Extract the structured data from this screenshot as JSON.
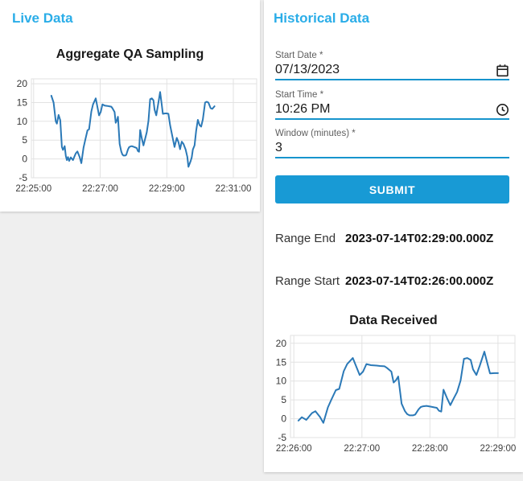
{
  "colors": {
    "header_blue": "#2aade8",
    "accent_blue": "#1794cd",
    "button_blue": "#189ad5",
    "line_blue": "#2b79b7",
    "grid": "#e2e2e2",
    "tick": "#3d3d3d",
    "page_bg": "#efefef",
    "card_bg": "#ffffff"
  },
  "live_panel": {
    "header": "Live Data"
  },
  "historical_panel": {
    "header": "Historical Data",
    "fields": [
      {
        "label": "Start Date *",
        "value": "07/13/2023",
        "icon": "calendar-icon"
      },
      {
        "label": "Start Time *",
        "value": "10:26 PM",
        "icon": "clock-icon"
      },
      {
        "label": "Window (minutes) *",
        "value": "3",
        "icon": ""
      }
    ],
    "submit_label": "SUBMIT",
    "results": [
      {
        "label": "Range End",
        "value": "2023-07-14T02:29:00.000Z"
      },
      {
        "label": "Range Start",
        "value": "2023-07-14T02:26:00.000Z"
      }
    ]
  },
  "chart_data": [
    {
      "type": "line",
      "title": "Aggregate QA Sampling",
      "xlabel": "",
      "ylabel": "",
      "grid": true,
      "legend": "none",
      "line_color": "#2b79b7",
      "y_ticks": [
        -5,
        0,
        5,
        10,
        15,
        20
      ],
      "ylim": [
        -5,
        21.3
      ],
      "x_ticks": [
        "22:25:00",
        "22:27:00",
        "22:29:00",
        "22:31:00"
      ],
      "x_tick_seconds": [
        0,
        120,
        240,
        360
      ],
      "xlim": [
        -4,
        402
      ],
      "points": [
        [
          32,
          16.8
        ],
        [
          36,
          15.0
        ],
        [
          40,
          10.0
        ],
        [
          42,
          9.4
        ],
        [
          45,
          11.7
        ],
        [
          48,
          10.3
        ],
        [
          51,
          3.2
        ],
        [
          53,
          2.4
        ],
        [
          56,
          3.4
        ],
        [
          58,
          0.8
        ],
        [
          60,
          -0.3
        ],
        [
          62,
          0.5
        ],
        [
          64,
          -0.5
        ],
        [
          67,
          0.4
        ],
        [
          71,
          -0.3
        ],
        [
          74,
          0.8
        ],
        [
          76,
          1.5
        ],
        [
          79,
          2.0
        ],
        [
          83,
          0.5
        ],
        [
          86,
          -1.1
        ],
        [
          90,
          3.0
        ],
        [
          93,
          5.0
        ],
        [
          97,
          7.6
        ],
        [
          100,
          7.9
        ],
        [
          104,
          12.6
        ],
        [
          107,
          14.5
        ],
        [
          112,
          16.1
        ],
        [
          118,
          11.6
        ],
        [
          121,
          12.5
        ],
        [
          124,
          14.5
        ],
        [
          128,
          14.2
        ],
        [
          133,
          14.1
        ],
        [
          136,
          14.0
        ],
        [
          140,
          13.9
        ],
        [
          142,
          13.5
        ],
        [
          146,
          12.5
        ],
        [
          148,
          9.6
        ],
        [
          150,
          10.2
        ],
        [
          152,
          11.2
        ],
        [
          155,
          4.0
        ],
        [
          158,
          2.0
        ],
        [
          160,
          1.2
        ],
        [
          162,
          0.9
        ],
        [
          165,
          0.9
        ],
        [
          167,
          1.1
        ],
        [
          170,
          2.5
        ],
        [
          172,
          3.1
        ],
        [
          174,
          3.3
        ],
        [
          177,
          3.4
        ],
        [
          179,
          3.3
        ],
        [
          181,
          3.2
        ],
        [
          184,
          3.0
        ],
        [
          186,
          2.9
        ],
        [
          188,
          2.1
        ],
        [
          190,
          1.9
        ],
        [
          192,
          7.7
        ],
        [
          195,
          5.5
        ],
        [
          198,
          3.6
        ],
        [
          201,
          5.4
        ],
        [
          204,
          7.1
        ],
        [
          207,
          10.1
        ],
        [
          210,
          15.9
        ],
        [
          213,
          16.1
        ],
        [
          216,
          15.6
        ],
        [
          218,
          13.1
        ],
        [
          221,
          11.6
        ],
        [
          224,
          14.1
        ],
        [
          228,
          17.8
        ],
        [
          231,
          14.3
        ],
        [
          233,
          12.0
        ],
        [
          237,
          12.1
        ],
        [
          240,
          12.1
        ],
        [
          243,
          12.0
        ],
        [
          246,
          9.0
        ],
        [
          248,
          7.5
        ],
        [
          254,
          3.2
        ],
        [
          258,
          5.6
        ],
        [
          261,
          4.5
        ],
        [
          264,
          2.6
        ],
        [
          267,
          4.6
        ],
        [
          270,
          4.0
        ],
        [
          274,
          2.5
        ],
        [
          277,
          0.6
        ],
        [
          279,
          -2.1
        ],
        [
          283,
          -0.6
        ],
        [
          285,
          0.4
        ],
        [
          287,
          2.5
        ],
        [
          290,
          3.6
        ],
        [
          293,
          7.5
        ],
        [
          296,
          10.4
        ],
        [
          299,
          9.0
        ],
        [
          302,
          8.6
        ],
        [
          305,
          10.5
        ],
        [
          309,
          15.0
        ],
        [
          312,
          15.2
        ],
        [
          315,
          15.0
        ],
        [
          319,
          13.5
        ],
        [
          322,
          13.3
        ],
        [
          326,
          14.0
        ]
      ]
    },
    {
      "type": "line",
      "title": "Data Received",
      "xlabel": "",
      "ylabel": "",
      "grid": true,
      "legend": "none",
      "line_color": "#2b79b7",
      "y_ticks": [
        -5,
        0,
        5,
        10,
        15,
        20
      ],
      "ylim": [
        -5,
        22.1
      ],
      "x_ticks": [
        "22:26:00",
        "22:27:00",
        "22:28:00",
        "22:29:00"
      ],
      "x_tick_seconds": [
        0,
        60,
        120,
        180
      ],
      "xlim": [
        -3,
        195
      ],
      "points": [
        [
          4,
          -0.5
        ],
        [
          7,
          0.4
        ],
        [
          11,
          -0.3
        ],
        [
          14,
          0.8
        ],
        [
          16,
          1.5
        ],
        [
          19,
          2.0
        ],
        [
          23,
          0.5
        ],
        [
          26,
          -1.1
        ],
        [
          30,
          3.0
        ],
        [
          33,
          5.0
        ],
        [
          37,
          7.6
        ],
        [
          40,
          7.9
        ],
        [
          44,
          12.6
        ],
        [
          47,
          14.5
        ],
        [
          52,
          16.1
        ],
        [
          58,
          11.6
        ],
        [
          61,
          12.5
        ],
        [
          64,
          14.5
        ],
        [
          68,
          14.2
        ],
        [
          73,
          14.1
        ],
        [
          76,
          14.0
        ],
        [
          80,
          13.9
        ],
        [
          82,
          13.5
        ],
        [
          86,
          12.5
        ],
        [
          88,
          9.6
        ],
        [
          90,
          10.2
        ],
        [
          92,
          11.2
        ],
        [
          95,
          4.0
        ],
        [
          98,
          2.0
        ],
        [
          100,
          1.2
        ],
        [
          102,
          0.9
        ],
        [
          105,
          0.9
        ],
        [
          107,
          1.1
        ],
        [
          110,
          2.5
        ],
        [
          112,
          3.1
        ],
        [
          114,
          3.3
        ],
        [
          117,
          3.4
        ],
        [
          119,
          3.3
        ],
        [
          121,
          3.2
        ],
        [
          124,
          3.0
        ],
        [
          126,
          2.9
        ],
        [
          128,
          2.1
        ],
        [
          130,
          1.9
        ],
        [
          132,
          7.7
        ],
        [
          135,
          5.5
        ],
        [
          138,
          3.6
        ],
        [
          141,
          5.4
        ],
        [
          144,
          7.1
        ],
        [
          147,
          10.1
        ],
        [
          150,
          15.9
        ],
        [
          153,
          16.1
        ],
        [
          156,
          15.6
        ],
        [
          158,
          13.1
        ],
        [
          161,
          11.6
        ],
        [
          164,
          14.1
        ],
        [
          168,
          17.8
        ],
        [
          171,
          14.3
        ],
        [
          173,
          12.0
        ],
        [
          177,
          12.1
        ],
        [
          180,
          12.1
        ]
      ]
    }
  ]
}
